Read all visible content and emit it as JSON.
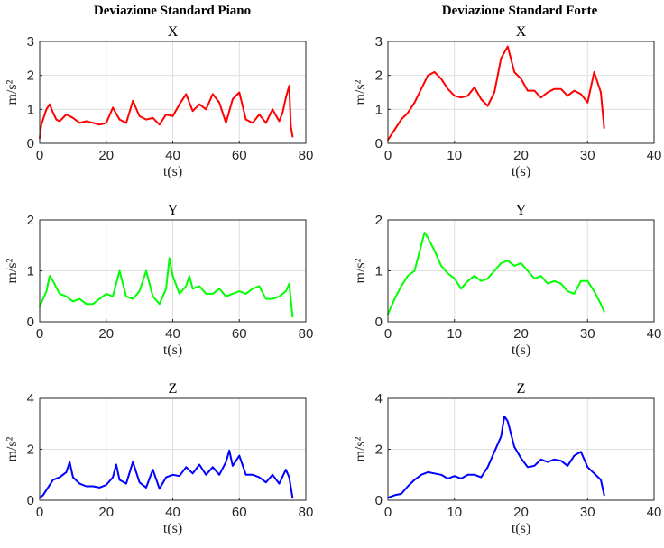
{
  "figure": {
    "columns": [
      {
        "title": "Deviazione Standard Piano"
      },
      {
        "title": "Deviazione Standard Forte"
      }
    ]
  },
  "chart_data": [
    {
      "type": "line",
      "title": "X",
      "xlabel": "t(s)",
      "ylabel": "m/s²",
      "xlim": [
        0,
        80
      ],
      "ylim": [
        0,
        3
      ],
      "xticks": [
        "0",
        "20",
        "40",
        "60",
        "80"
      ],
      "yticks": [
        "0",
        "1",
        "2",
        "3"
      ],
      "grid": true,
      "color": "#ff0000",
      "series": [
        {
          "x": [
            0,
            0.5,
            1,
            2,
            3,
            4,
            5,
            6,
            8,
            10,
            12,
            14,
            16,
            18,
            20,
            22,
            24,
            26,
            28,
            30,
            32,
            34,
            36,
            38,
            40,
            42,
            44,
            46,
            48,
            50,
            52,
            54,
            56,
            58,
            60,
            62,
            64,
            66,
            68,
            70,
            72,
            73,
            74,
            75,
            75.5,
            76
          ],
          "y": [
            0.15,
            0.55,
            0.7,
            1.0,
            1.15,
            0.9,
            0.7,
            0.65,
            0.85,
            0.75,
            0.6,
            0.65,
            0.6,
            0.55,
            0.6,
            1.05,
            0.7,
            0.6,
            1.25,
            0.8,
            0.7,
            0.75,
            0.55,
            0.85,
            0.8,
            1.15,
            1.45,
            0.95,
            1.15,
            1.0,
            1.45,
            1.2,
            0.6,
            1.3,
            1.5,
            0.7,
            0.6,
            0.85,
            0.6,
            1.0,
            0.65,
            0.9,
            1.35,
            1.7,
            0.5,
            0.2
          ]
        }
      ]
    },
    {
      "type": "line",
      "title": "X",
      "xlabel": "t(s)",
      "ylabel": "m/s²",
      "xlim": [
        0,
        40
      ],
      "ylim": [
        0,
        3
      ],
      "xticks": [
        "0",
        "10",
        "20",
        "30",
        "40"
      ],
      "yticks": [
        "0",
        "1",
        "2",
        "3"
      ],
      "grid": true,
      "color": "#ff0000",
      "series": [
        {
          "x": [
            0,
            1,
            2,
            3,
            4,
            5,
            6,
            7,
            8,
            9,
            10,
            11,
            12,
            13,
            14,
            15,
            16,
            17,
            18,
            19,
            20,
            21,
            22,
            23,
            24,
            25,
            26,
            27,
            28,
            29,
            30,
            31,
            32,
            32.5
          ],
          "y": [
            0.1,
            0.4,
            0.7,
            0.9,
            1.2,
            1.6,
            2.0,
            2.1,
            1.9,
            1.6,
            1.4,
            1.35,
            1.4,
            1.65,
            1.3,
            1.1,
            1.5,
            2.5,
            2.85,
            2.1,
            1.9,
            1.55,
            1.55,
            1.35,
            1.5,
            1.6,
            1.6,
            1.4,
            1.55,
            1.45,
            1.2,
            2.1,
            1.5,
            0.45
          ]
        }
      ]
    },
    {
      "type": "line",
      "title": "Y",
      "xlabel": "t(s)",
      "ylabel": "m/s²",
      "xlim": [
        0,
        80
      ],
      "ylim": [
        0,
        2
      ],
      "xticks": [
        "0",
        "20",
        "40",
        "60",
        "80"
      ],
      "yticks": [
        "0",
        "1",
        "2"
      ],
      "grid": true,
      "color": "#00ff00",
      "series": [
        {
          "x": [
            0,
            2,
            3,
            4,
            6,
            8,
            10,
            12,
            14,
            16,
            18,
            20,
            22,
            24,
            26,
            28,
            30,
            32,
            34,
            36,
            38,
            39,
            40,
            42,
            44,
            45,
            46,
            48,
            50,
            52,
            54,
            56,
            58,
            60,
            62,
            64,
            66,
            68,
            70,
            72,
            74,
            75,
            76
          ],
          "y": [
            0.3,
            0.6,
            0.9,
            0.8,
            0.55,
            0.5,
            0.4,
            0.45,
            0.35,
            0.35,
            0.45,
            0.55,
            0.5,
            1.0,
            0.5,
            0.45,
            0.6,
            1.0,
            0.5,
            0.35,
            0.65,
            1.25,
            0.9,
            0.55,
            0.7,
            0.9,
            0.65,
            0.7,
            0.55,
            0.55,
            0.65,
            0.5,
            0.55,
            0.6,
            0.55,
            0.65,
            0.7,
            0.45,
            0.45,
            0.5,
            0.6,
            0.75,
            0.1
          ]
        }
      ]
    },
    {
      "type": "line",
      "title": "Y",
      "xlabel": "t(s)",
      "ylabel": "m/s²",
      "xlim": [
        0,
        40
      ],
      "ylim": [
        0,
        2
      ],
      "xticks": [
        "0",
        "10",
        "20",
        "30",
        "40"
      ],
      "yticks": [
        "0",
        "1",
        "2"
      ],
      "grid": true,
      "color": "#00ff00",
      "series": [
        {
          "x": [
            0,
            1,
            2,
            3,
            4,
            5,
            5.5,
            6,
            7,
            8,
            9,
            10,
            11,
            12,
            13,
            14,
            15,
            16,
            17,
            18,
            19,
            20,
            21,
            22,
            23,
            24,
            25,
            26,
            27,
            28,
            29,
            30,
            31,
            32,
            32.5
          ],
          "y": [
            0.15,
            0.45,
            0.7,
            0.9,
            1.0,
            1.5,
            1.75,
            1.65,
            1.4,
            1.1,
            0.95,
            0.85,
            0.65,
            0.8,
            0.9,
            0.8,
            0.85,
            1.0,
            1.15,
            1.2,
            1.1,
            1.15,
            1.0,
            0.85,
            0.9,
            0.75,
            0.8,
            0.75,
            0.6,
            0.55,
            0.8,
            0.8,
            0.6,
            0.35,
            0.2
          ]
        }
      ]
    },
    {
      "type": "line",
      "title": "Z",
      "xlabel": "t(s)",
      "ylabel": "m/s²",
      "xlim": [
        0,
        80
      ],
      "ylim": [
        0,
        4
      ],
      "xticks": [
        "0",
        "20",
        "40",
        "60",
        "80"
      ],
      "yticks": [
        "0",
        "2",
        "4"
      ],
      "grid": true,
      "color": "#0000ff",
      "series": [
        {
          "x": [
            0,
            1,
            2,
            4,
            6,
            8,
            9,
            10,
            12,
            14,
            16,
            18,
            20,
            22,
            23,
            24,
            26,
            28,
            30,
            32,
            34,
            36,
            38,
            40,
            42,
            44,
            46,
            48,
            50,
            52,
            54,
            56,
            57,
            58,
            60,
            62,
            64,
            66,
            68,
            70,
            72,
            74,
            75,
            76
          ],
          "y": [
            0.1,
            0.2,
            0.4,
            0.8,
            0.9,
            1.1,
            1.5,
            0.9,
            0.65,
            0.55,
            0.55,
            0.5,
            0.6,
            0.9,
            1.4,
            0.8,
            0.65,
            1.5,
            0.7,
            0.5,
            1.2,
            0.45,
            0.9,
            1.0,
            0.95,
            1.3,
            1.05,
            1.4,
            1.0,
            1.3,
            1.0,
            1.5,
            1.95,
            1.35,
            1.75,
            1.0,
            1.0,
            0.9,
            0.7,
            1.0,
            0.65,
            1.2,
            0.9,
            0.1
          ]
        }
      ]
    },
    {
      "type": "line",
      "title": "Z",
      "xlabel": "t(s)",
      "ylabel": "m/s²",
      "xlim": [
        0,
        40
      ],
      "ylim": [
        0,
        4
      ],
      "xticks": [
        "0",
        "10",
        "20",
        "30",
        "40"
      ],
      "yticks": [
        "0",
        "2",
        "4"
      ],
      "grid": true,
      "color": "#0000ff",
      "series": [
        {
          "x": [
            0,
            1,
            2,
            3,
            4,
            5,
            6,
            7,
            8,
            9,
            10,
            11,
            12,
            13,
            14,
            15,
            16,
            17,
            17.5,
            18,
            19,
            20,
            21,
            22,
            23,
            24,
            25,
            26,
            27,
            28,
            29,
            30,
            31,
            32,
            32.5
          ],
          "y": [
            0.1,
            0.2,
            0.25,
            0.55,
            0.8,
            1.0,
            1.1,
            1.05,
            1.0,
            0.85,
            0.95,
            0.85,
            1.0,
            1.0,
            0.9,
            1.3,
            1.9,
            2.5,
            3.3,
            3.1,
            2.1,
            1.65,
            1.3,
            1.35,
            1.6,
            1.5,
            1.6,
            1.55,
            1.35,
            1.75,
            1.9,
            1.3,
            1.05,
            0.8,
            0.2
          ]
        }
      ]
    }
  ]
}
